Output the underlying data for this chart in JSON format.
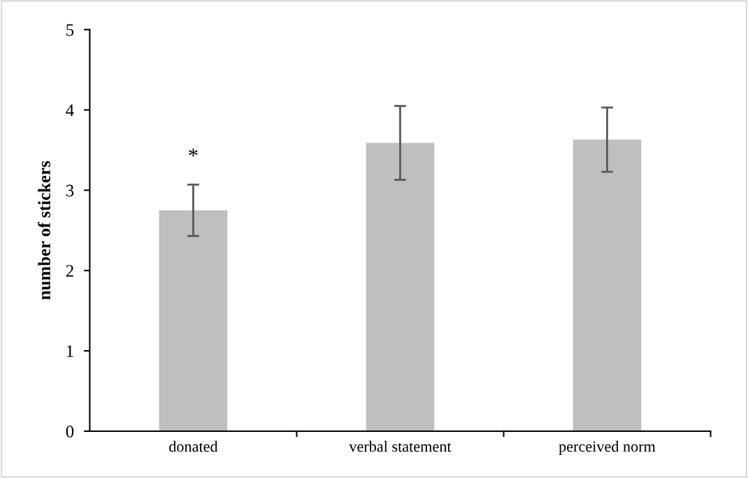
{
  "chart_data": {
    "type": "bar",
    "ylabel": "number of stickers",
    "categories": [
      "donated",
      "verbal statement",
      "perceived norm"
    ],
    "values": [
      2.75,
      3.59,
      3.63
    ],
    "errors": [
      0.32,
      0.46,
      0.4
    ],
    "color": "#bfbfbf",
    "ylim": [
      0,
      5
    ],
    "yticks": [
      0,
      1,
      2,
      3,
      4,
      5
    ],
    "grid": false,
    "legend": false,
    "annotations": [
      "*"
    ]
  }
}
